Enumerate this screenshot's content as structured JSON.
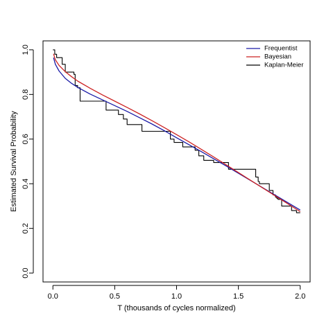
{
  "chart_data": {
    "type": "line",
    "xlabel": "T (thousands of cycles normalized)",
    "ylabel": "Estimated Survival Probability",
    "xlim": [
      -0.08,
      2.08
    ],
    "ylim": [
      -0.04,
      1.04
    ],
    "xticks": [
      0.0,
      0.5,
      1.0,
      1.5,
      2.0
    ],
    "xtick_labels": [
      "0.0",
      "0.5",
      "1.0",
      "1.5",
      "2.0"
    ],
    "yticks": [
      0.0,
      0.2,
      0.4,
      0.6,
      0.8,
      1.0
    ],
    "ytick_labels": [
      "0.0",
      "0.2",
      "0.4",
      "0.6",
      "0.8",
      "1.0"
    ],
    "grid": false,
    "legend": {
      "position": "top-right",
      "entries": [
        {
          "name": "Frequentist",
          "color": "#1a1aa6"
        },
        {
          "name": "Bayesian",
          "color": "#cc2222"
        },
        {
          "name": "Kaplan-Meier",
          "color": "#000000"
        }
      ]
    },
    "series": [
      {
        "name": "Frequentist",
        "color": "#1a1aa6",
        "style": "line",
        "x": [
          0.005,
          0.02,
          0.05,
          0.1,
          0.15,
          0.2,
          0.3,
          0.4,
          0.5,
          0.6,
          0.7,
          0.8,
          0.9,
          1.0,
          1.1,
          1.2,
          1.3,
          1.4,
          1.5,
          1.6,
          1.7,
          1.8,
          1.9,
          2.0
        ],
        "y": [
          0.965,
          0.935,
          0.905,
          0.872,
          0.85,
          0.832,
          0.802,
          0.776,
          0.75,
          0.724,
          0.696,
          0.668,
          0.638,
          0.606,
          0.575,
          0.544,
          0.512,
          0.48,
          0.447,
          0.414,
          0.381,
          0.348,
          0.315,
          0.282
        ]
      },
      {
        "name": "Bayesian",
        "color": "#cc2222",
        "style": "line",
        "x": [
          0.005,
          0.02,
          0.05,
          0.1,
          0.15,
          0.2,
          0.3,
          0.4,
          0.5,
          0.6,
          0.7,
          0.8,
          0.9,
          1.0,
          1.1,
          1.2,
          1.3,
          1.4,
          1.5,
          1.6,
          1.7,
          1.8,
          1.9,
          2.0
        ],
        "y": [
          0.982,
          0.955,
          0.93,
          0.902,
          0.88,
          0.86,
          0.828,
          0.798,
          0.77,
          0.742,
          0.713,
          0.683,
          0.652,
          0.62,
          0.588,
          0.554,
          0.52,
          0.485,
          0.45,
          0.415,
          0.38,
          0.345,
          0.31,
          0.275
        ]
      },
      {
        "name": "Kaplan-Meier",
        "color": "#000000",
        "style": "step",
        "x": [
          0.0,
          0.015,
          0.03,
          0.075,
          0.1,
          0.17,
          0.18,
          0.2,
          0.22,
          0.43,
          0.53,
          0.57,
          0.6,
          0.72,
          0.95,
          0.98,
          1.05,
          1.15,
          1.18,
          1.22,
          1.3,
          1.42,
          1.64,
          1.66,
          1.67,
          1.75,
          1.78,
          1.8,
          1.81,
          1.82,
          1.85,
          1.93,
          1.97,
          2.0
        ],
        "y": [
          1.0,
          0.98,
          0.965,
          0.935,
          0.9,
          0.89,
          0.84,
          0.83,
          0.77,
          0.73,
          0.71,
          0.69,
          0.665,
          0.635,
          0.6,
          0.585,
          0.565,
          0.55,
          0.525,
          0.505,
          0.495,
          0.465,
          0.43,
          0.41,
          0.4,
          0.37,
          0.35,
          0.34,
          0.335,
          0.33,
          0.3,
          0.28,
          0.27,
          0.27
        ]
      }
    ]
  }
}
